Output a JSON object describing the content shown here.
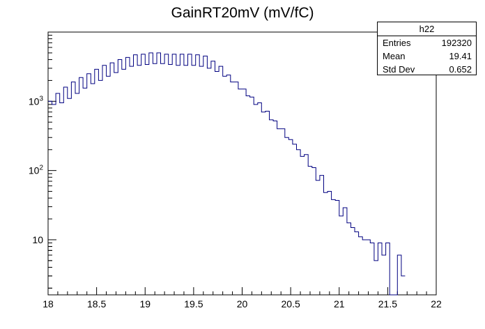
{
  "title": "GainRT20mV (mV/fC)",
  "stats": {
    "name": "h22",
    "rows": [
      {
        "label": "Entries",
        "value": "192320"
      },
      {
        "label": "Mean",
        "value": "19.41"
      },
      {
        "label": "Std Dev",
        "value": "0.652"
      }
    ]
  },
  "colors": {
    "line": "#000080",
    "axis": "#000000",
    "background": "#ffffff"
  },
  "chart_data": {
    "type": "histogram",
    "title": "GainRT20mV (mV/fC)",
    "xlabel": "",
    "ylabel": "",
    "xlim": [
      18,
      22
    ],
    "ylim": [
      1.6,
      10000
    ],
    "y_scale": "log",
    "grid": false,
    "legend": "none",
    "x_ticks": [
      18,
      18.5,
      19,
      19.5,
      20,
      20.5,
      21,
      21.5,
      22
    ],
    "x_tick_labels": [
      "18",
      "18.5",
      "19",
      "19.5",
      "20",
      "20.5",
      "21",
      "21.5",
      "22"
    ],
    "y_ticks": [
      10,
      100,
      1000
    ],
    "y_tick_labels": [
      "10",
      "10²",
      "10³"
    ],
    "bin_width": 0.04,
    "bin_edges_start": 18,
    "bin_values": [
      1000,
      900,
      1300,
      950,
      1600,
      1100,
      1900,
      1300,
      2200,
      1550,
      2500,
      1800,
      2900,
      2000,
      3300,
      2300,
      3600,
      2600,
      4000,
      2900,
      4300,
      3200,
      4700,
      3300,
      4800,
      3400,
      5000,
      3500,
      5000,
      3500,
      4800,
      3400,
      4800,
      3300,
      4800,
      3300,
      4800,
      3300,
      4700,
      3200,
      4500,
      3000,
      3800,
      2700,
      3200,
      2300,
      2400,
      1900,
      1900,
      1500,
      1500,
      1200,
      1150,
      900,
      950,
      700,
      720,
      540,
      520,
      400,
      400,
      300,
      280,
      240,
      200,
      160,
      170,
      115,
      110,
      72,
      85,
      48,
      50,
      38,
      37,
      22,
      29,
      17.5,
      15,
      13,
      11,
      10,
      10,
      9,
      5,
      9,
      6,
      9,
      1.2,
      1,
      6,
      3
    ]
  }
}
